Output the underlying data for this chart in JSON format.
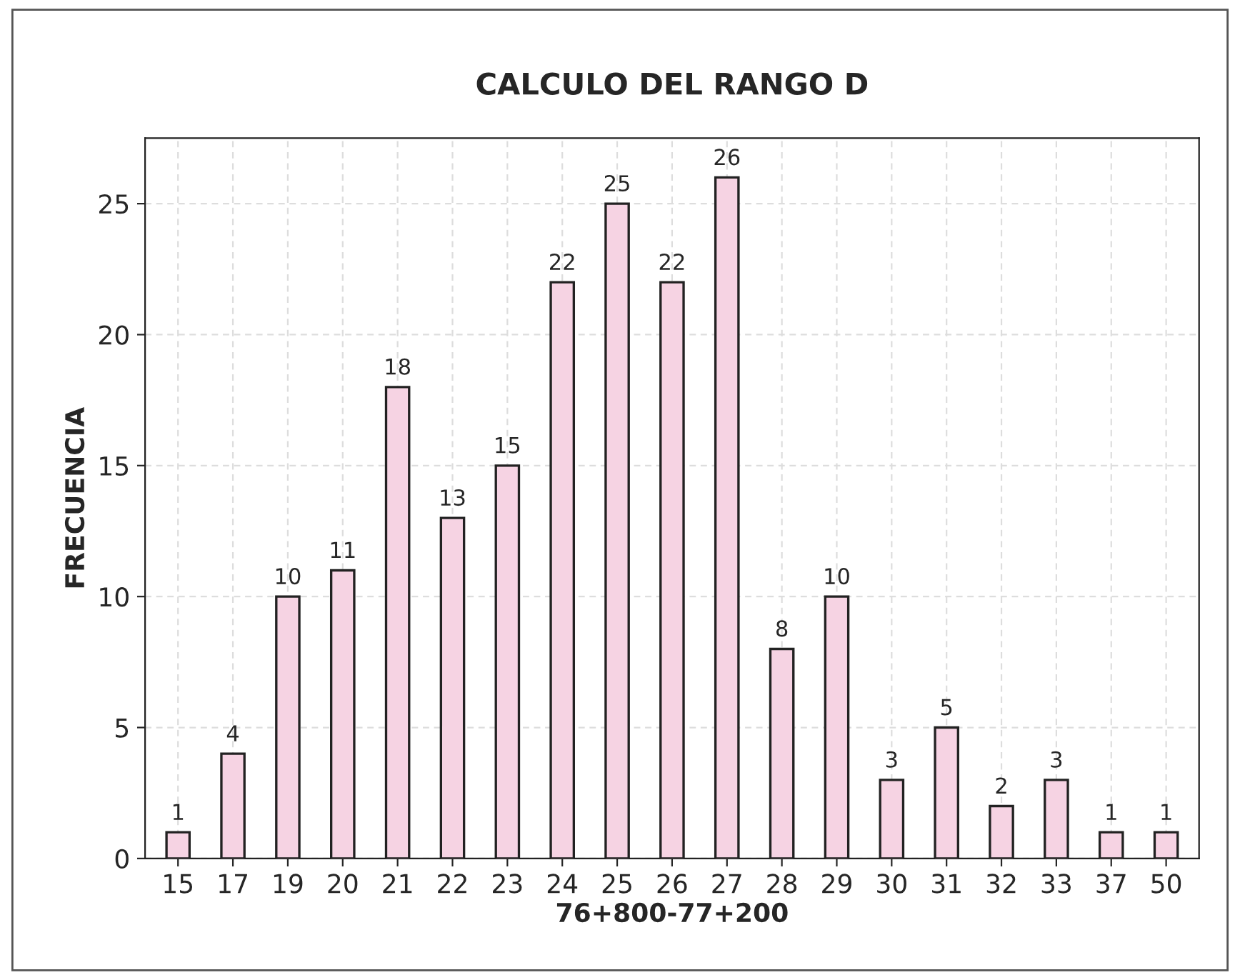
{
  "chart_data": {
    "type": "bar",
    "title": "CALCULO DEL RANGO D",
    "xlabel": "76+800-77+200",
    "ylabel": "FRECUENCIA",
    "categories": [
      "15",
      "17",
      "19",
      "20",
      "21",
      "22",
      "23",
      "24",
      "25",
      "26",
      "27",
      "28",
      "29",
      "30",
      "31",
      "32",
      "33",
      "37",
      "50"
    ],
    "values": [
      1,
      4,
      10,
      11,
      18,
      13,
      15,
      22,
      25,
      22,
      26,
      8,
      10,
      3,
      5,
      2,
      3,
      1,
      1
    ],
    "color": "#f6d3e3",
    "ylim": [
      0,
      27.5
    ],
    "yticks": [
      0,
      5,
      10,
      15,
      20,
      25
    ],
    "grid": true,
    "data_labels": true
  }
}
